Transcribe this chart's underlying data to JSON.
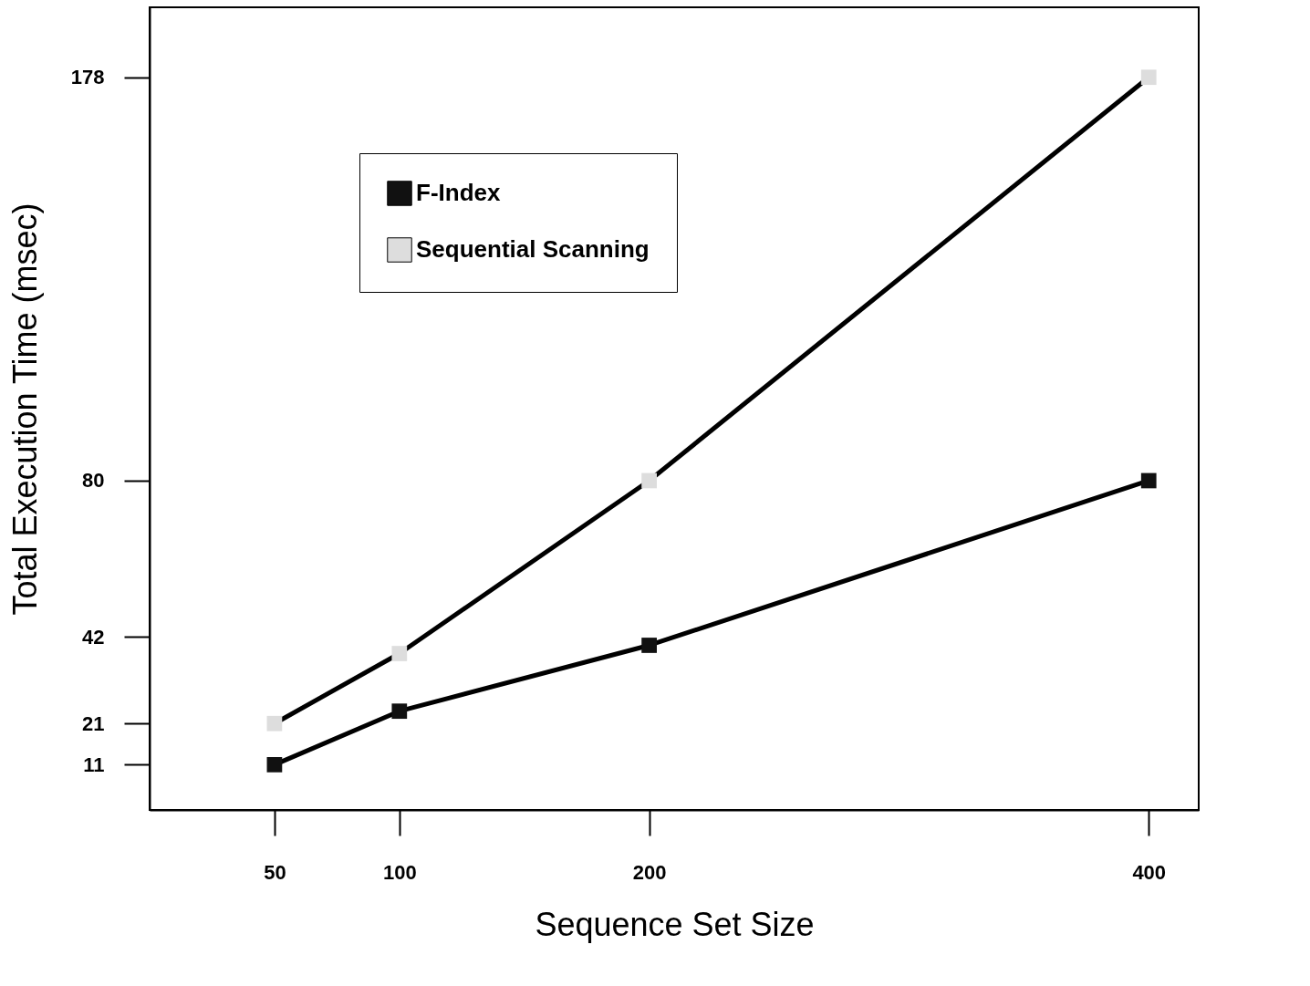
{
  "chart_data": {
    "type": "line",
    "xlabel": "Sequence Set Size",
    "ylabel": "Total Execution Time (msec)",
    "x": [
      50,
      100,
      200,
      400
    ],
    "series": [
      {
        "name": "F-Index",
        "color": "#111111",
        "values": [
          11,
          24,
          40,
          80
        ]
      },
      {
        "name": "Sequential Scanning",
        "color": "#dddddd",
        "values": [
          21,
          38,
          80,
          178
        ]
      }
    ],
    "xlim": [
      0,
      420
    ],
    "xticks": [
      50,
      100,
      200,
      400
    ],
    "ylim": [
      0,
      195
    ],
    "yticks": [
      11,
      21,
      42,
      80,
      178
    ],
    "grid": false,
    "legend": "top left",
    "marker": "square",
    "line_style": "solid"
  }
}
